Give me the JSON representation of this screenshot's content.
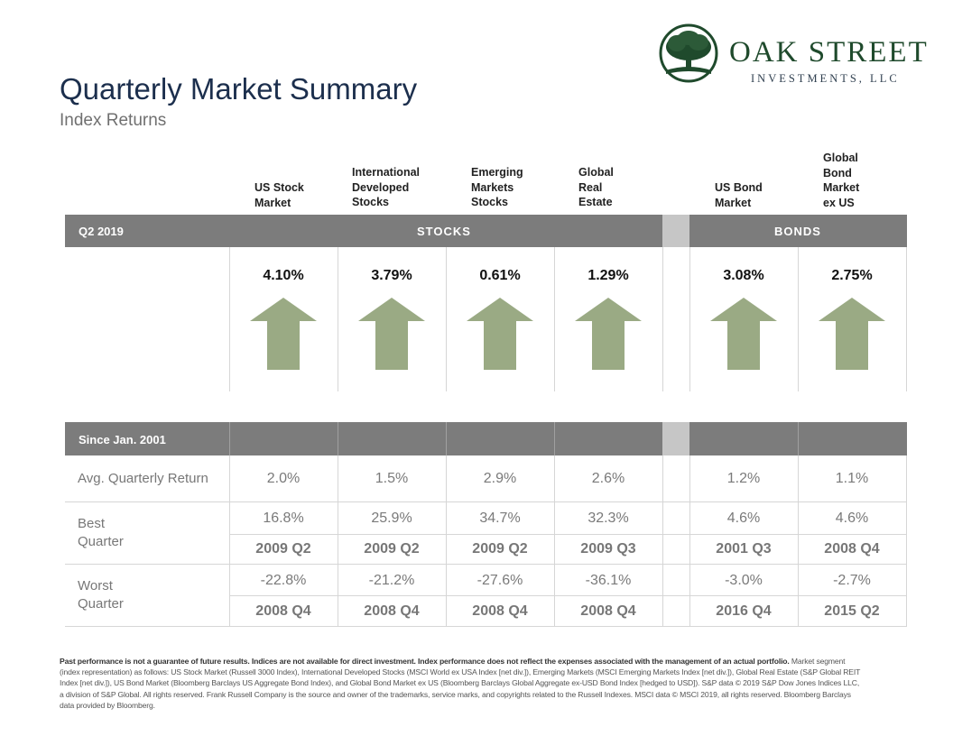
{
  "logo": {
    "name": "OAK STREET",
    "sub": "INVESTMENTS, LLC",
    "icon": "oak-tree-icon",
    "color": "#1f4a2c"
  },
  "title": "Quarterly Market Summary",
  "subtitle": "Index Returns",
  "columns": [
    {
      "label": "US Stock\nMarket"
    },
    {
      "label": "International\nDeveloped\nStocks"
    },
    {
      "label": "Emerging\nMarkets\nStocks"
    },
    {
      "label": "Global\nReal\nEstate"
    },
    {
      "label": "US Bond\nMarket"
    },
    {
      "label": "Global\nBond\nMarket\nex US"
    }
  ],
  "quarter_bar": {
    "period": "Q2 2019",
    "stocks": "STOCKS",
    "bonds": "BONDS"
  },
  "quarter_returns": [
    "4.10%",
    "3.79%",
    "0.61%",
    "1.29%",
    "3.08%",
    "2.75%"
  ],
  "arrow_direction": "up",
  "arrow_color": "#9aaa84",
  "since_bar": {
    "label": "Since Jan. 2001"
  },
  "rows": {
    "avg_label": "Avg. Quarterly Return",
    "avg": [
      "2.0%",
      "1.5%",
      "2.9%",
      "2.6%",
      "1.2%",
      "1.1%"
    ],
    "best_label": "Best\nQuarter",
    "best_values": [
      "16.8%",
      "25.9%",
      "34.7%",
      "32.3%",
      "4.6%",
      "4.6%"
    ],
    "best_quarters": [
      "2009 Q2",
      "2009 Q2",
      "2009 Q2",
      "2009 Q3",
      "2001 Q3",
      "2008 Q4"
    ],
    "worst_label": "Worst\nQuarter",
    "worst_values": [
      "-22.8%",
      "-21.2%",
      "-27.6%",
      "-36.1%",
      "-3.0%",
      "-2.7%"
    ],
    "worst_quarters": [
      "2008 Q4",
      "2008 Q4",
      "2008 Q4",
      "2008 Q4",
      "2016 Q4",
      "2015 Q2"
    ]
  },
  "footnote": {
    "bold": "Past performance is not a guarantee of future results. Indices are not available for direct investment. Index performance does not reflect the expenses associated with the management of an actual portfolio.",
    "text": "Market segment (index representation) as follows: US Stock Market (Russell 3000 Index), International Developed Stocks (MSCI World ex USA Index [net div.]), Emerging Markets (MSCI Emerging Markets Index [net div.]), Global Real Estate (S&P Global REIT Index [net div.]), US Bond Market (Bloomberg Barclays US Aggregate Bond Index), and Global Bond Market ex US (Bloomberg Barclays Global Aggregate ex-USD Bond Index [hedged to USD]). S&P data © 2019 S&P Dow Jones Indices LLC, a division of S&P Global. All rights reserved. Frank Russell Company is the source and owner of the trademarks, service marks, and copyrights related to the Russell Indexes. MSCI data © MSCI 2019, all rights reserved. Bloomberg Barclays data provided by Bloomberg."
  },
  "colors": {
    "bar": "#7c7c7c",
    "bar_gap": "#c6c6c6",
    "title": "#1c2f4d",
    "grid": "#d6d6d6"
  }
}
